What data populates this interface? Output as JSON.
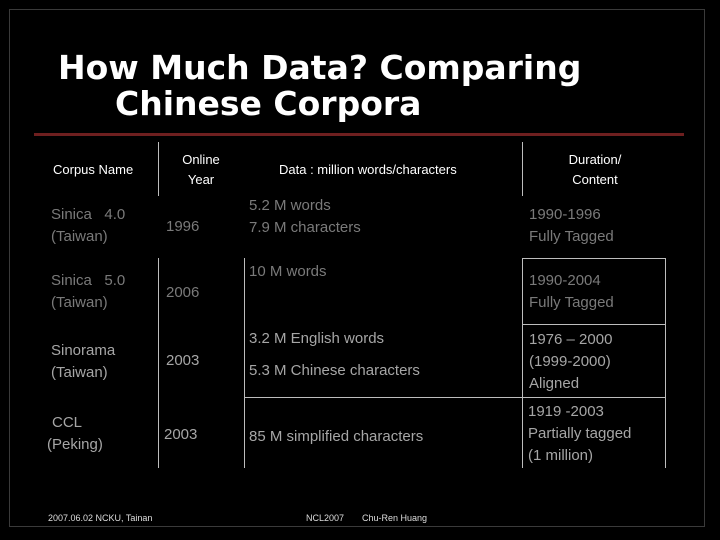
{
  "slide": {
    "title_line1": "How Much Data? Comparing",
    "title_line2": "Chinese Corpora"
  },
  "table": {
    "headers": {
      "corpus_name": "Corpus Name",
      "online_year_1": "Online",
      "online_year_2": "Year",
      "data": "Data : million words/characters",
      "duration_1": "Duration/",
      "duration_2": "Content"
    },
    "rows": [
      {
        "name_1": "Sinica   4.0",
        "name_2": "(Taiwan)",
        "year": "1996",
        "data_1": "5.2 M words",
        "data_2": "7.9 M characters",
        "duration_1": "1990-1996",
        "duration_2": "Fully Tagged"
      },
      {
        "name_1": "Sinica   5.0",
        "name_2": "(Taiwan)",
        "year": "2006",
        "data_1": "10 M words",
        "duration_1": "1990-2004",
        "duration_2": "Fully Tagged"
      },
      {
        "name_1": "Sinorama",
        "name_2": "(Taiwan)",
        "year": "2003",
        "data_1": "3.2 M English words",
        "data_2": "5.3 M Chinese characters",
        "duration_1": "1976 – 2000",
        "duration_2": "(1999-2000)",
        "duration_3": "Aligned"
      },
      {
        "name_1": "CCL",
        "name_2": "(Peking)",
        "year": "2003",
        "data_1": "85 M simplified characters",
        "duration_1": "1919 -2003",
        "duration_2": "Partially tagged",
        "duration_3": "(1 million)"
      }
    ]
  },
  "footer": {
    "left": "2007.06.02 NCKU, Tainan",
    "center": "NCL2007",
    "right": "Chu-Ren Huang"
  }
}
